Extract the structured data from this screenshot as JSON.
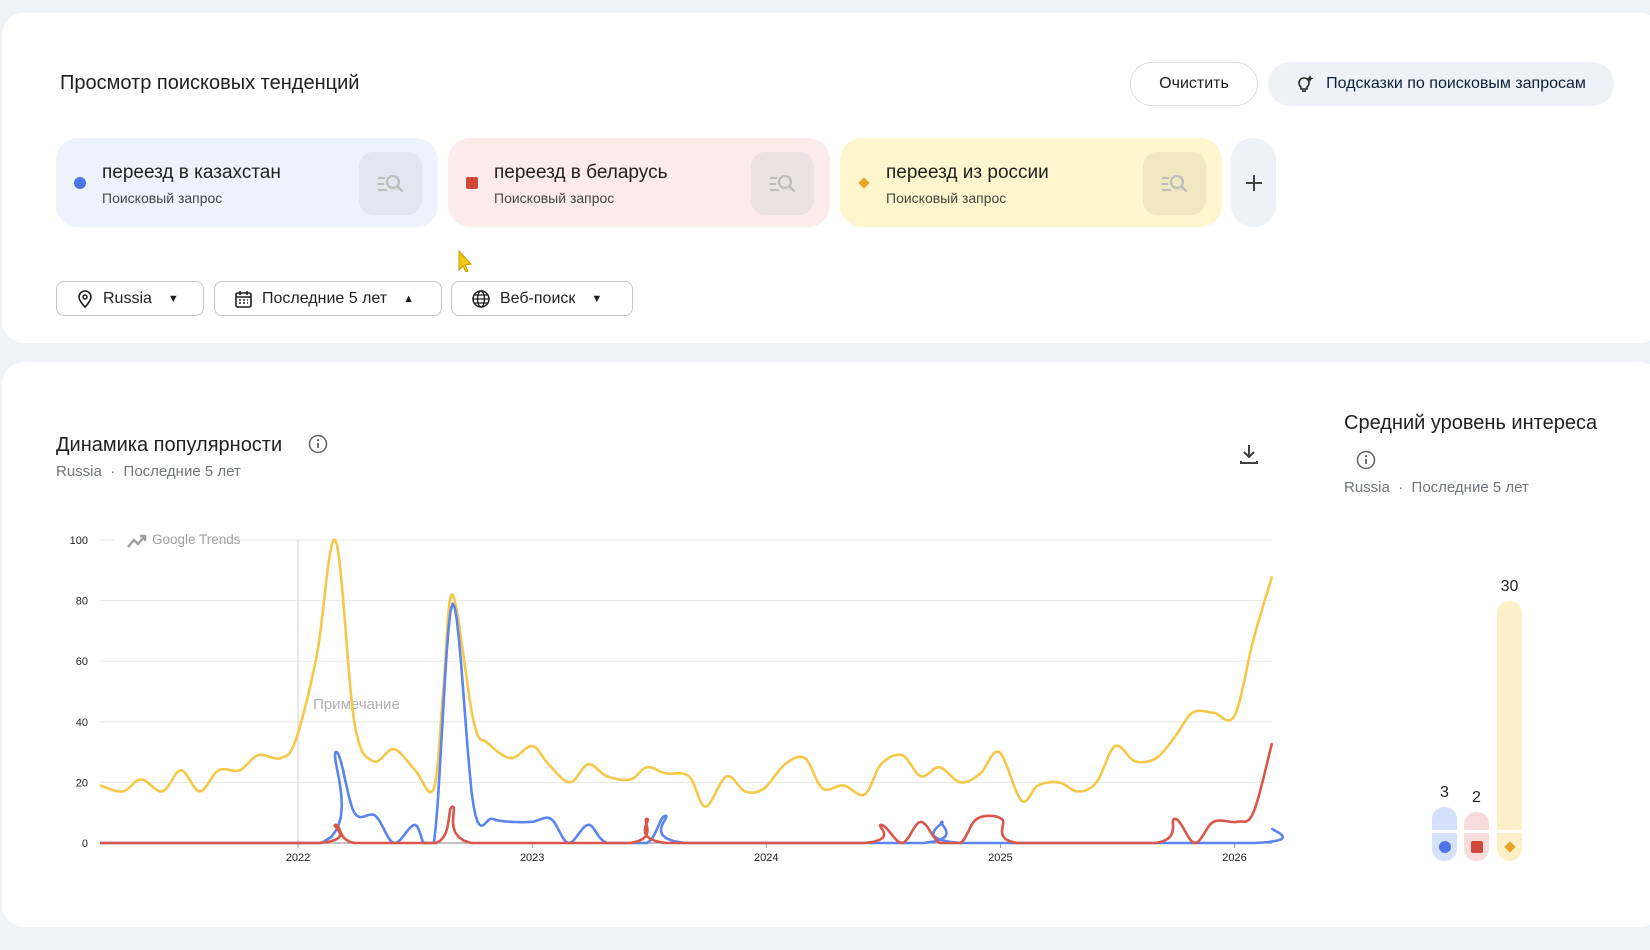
{
  "header": {
    "title": "Просмотр поисковых тенденций",
    "clear_label": "Очистить",
    "suggest_label": "Подсказки по поисковым запросам"
  },
  "terms": [
    {
      "term": "переезд в казахстан",
      "type": "Поисковый запрос",
      "color": "#4a74e8",
      "bg": "#edf2fd",
      "icon_bg": "#e1e6f0",
      "average": 3,
      "marker": "circle"
    },
    {
      "term": "переезд в беларусь",
      "type": "Поисковый запрос",
      "color": "#d3463a",
      "bg": "#fbeceb",
      "icon_bg": "#ede2e3",
      "average": 2,
      "marker": "square"
    },
    {
      "term": "переезд из россии",
      "type": "Поисковый запрос",
      "color": "#e8a427",
      "bg": "#fef7cd",
      "icon_bg": "#f0e8c1",
      "average": 30,
      "marker": "diamond"
    }
  ],
  "filters": {
    "region": "Russia",
    "period": "Последние 5 лет",
    "property": "Веб-поиск"
  },
  "trend": {
    "title": "Динамика популярности",
    "region": "Russia",
    "period": "Последние 5 лет",
    "watermark": "Google Trends",
    "note": "Примечание"
  },
  "average": {
    "title": "Средний уровень интереса",
    "region": "Russia",
    "period": "Последние 5 лет"
  },
  "chart_data": {
    "type": "line",
    "title": "Динамика популярности",
    "xlim": [
      2021.154,
      2026.16
    ],
    "ylim": [
      0,
      100
    ],
    "yticks": [
      "0",
      "20",
      "40",
      "60",
      "80",
      "100"
    ],
    "xticks": [
      {
        "label": "2022",
        "x": 2022
      },
      {
        "label": "2023",
        "x": 2023
      },
      {
        "label": "2024",
        "x": 2024
      },
      {
        "label": "2025",
        "x": 2025
      },
      {
        "label": "2026",
        "x": 2026
      }
    ],
    "grid": true,
    "series": [
      {
        "name": "переезд из россии",
        "color": "#f6c84a",
        "points": [
          [
            2021.154,
            19
          ],
          [
            2021.25,
            17
          ],
          [
            2021.33,
            21
          ],
          [
            2021.42,
            17
          ],
          [
            2021.5,
            24
          ],
          [
            2021.58,
            17
          ],
          [
            2021.66,
            24
          ],
          [
            2021.75,
            24
          ],
          [
            2021.83,
            29
          ],
          [
            2021.925,
            28
          ],
          [
            2021.99,
            34
          ],
          [
            2022.08,
            62
          ],
          [
            2022.16,
            100
          ],
          [
            2022.24,
            40
          ],
          [
            2022.32,
            27
          ],
          [
            2022.41,
            31
          ],
          [
            2022.5,
            24
          ],
          [
            2022.58,
            18
          ],
          [
            2022.62,
            50
          ],
          [
            2022.66,
            82
          ],
          [
            2022.75,
            40
          ],
          [
            2022.81,
            33
          ],
          [
            2022.91,
            28
          ],
          [
            2023.0,
            32
          ],
          [
            2023.07,
            26
          ],
          [
            2023.16,
            20
          ],
          [
            2023.24,
            26
          ],
          [
            2023.32,
            22
          ],
          [
            2023.42,
            21
          ],
          [
            2023.49,
            25
          ],
          [
            2023.57,
            23
          ],
          [
            2023.67,
            22
          ],
          [
            2023.74,
            12
          ],
          [
            2023.83,
            22
          ],
          [
            2023.91,
            17
          ],
          [
            2023.99,
            18
          ],
          [
            2024.08,
            26
          ],
          [
            2024.165,
            28
          ],
          [
            2024.24,
            18
          ],
          [
            2024.33,
            19
          ],
          [
            2024.42,
            16
          ],
          [
            2024.49,
            26
          ],
          [
            2024.58,
            29
          ],
          [
            2024.66,
            22
          ],
          [
            2024.74,
            25
          ],
          [
            2024.83,
            20
          ],
          [
            2024.915,
            23
          ],
          [
            2024.995,
            30
          ],
          [
            2025.09,
            14
          ],
          [
            2025.16,
            19
          ],
          [
            2025.25,
            20
          ],
          [
            2025.33,
            17
          ],
          [
            2025.41,
            20
          ],
          [
            2025.49,
            32
          ],
          [
            2025.575,
            27
          ],
          [
            2025.665,
            28
          ],
          [
            2025.745,
            35
          ],
          [
            2025.82,
            43
          ],
          [
            2025.91,
            43
          ],
          [
            2026.0,
            42
          ],
          [
            2026.08,
            67
          ],
          [
            2026.16,
            88
          ]
        ]
      },
      {
        "name": "переезд в казахстан",
        "color": "#5b84ee",
        "points": [
          [
            2021.154,
            0
          ],
          [
            2022.1,
            0
          ],
          [
            2022.16,
            30
          ],
          [
            2022.24,
            10
          ],
          [
            2022.33,
            9
          ],
          [
            2022.41,
            0
          ],
          [
            2022.5,
            6
          ],
          [
            2022.58,
            0
          ],
          [
            2022.66,
            79
          ],
          [
            2022.75,
            12
          ],
          [
            2022.83,
            8
          ],
          [
            2022.91,
            7
          ],
          [
            2023.0,
            7
          ],
          [
            2023.08,
            8
          ],
          [
            2023.155,
            0
          ],
          [
            2023.24,
            6
          ],
          [
            2023.32,
            0
          ],
          [
            2023.49,
            0
          ],
          [
            2023.57,
            9
          ],
          [
            2023.65,
            0
          ],
          [
            2024.67,
            0
          ],
          [
            2024.75,
            7
          ],
          [
            2024.83,
            0
          ],
          [
            2026.09,
            0
          ],
          [
            2026.16,
            5
          ]
        ]
      },
      {
        "name": "переезд в беларусь",
        "color": "#d9574a",
        "points": [
          [
            2021.154,
            0
          ],
          [
            2022.09,
            0
          ],
          [
            2022.16,
            6
          ],
          [
            2022.24,
            0
          ],
          [
            2022.59,
            0
          ],
          [
            2022.66,
            12
          ],
          [
            2022.74,
            0
          ],
          [
            2023.42,
            0
          ],
          [
            2023.49,
            8
          ],
          [
            2023.57,
            0
          ],
          [
            2024.42,
            0
          ],
          [
            2024.49,
            6
          ],
          [
            2024.58,
            0
          ],
          [
            2024.66,
            7
          ],
          [
            2024.74,
            0
          ],
          [
            2024.83,
            0
          ],
          [
            2024.9,
            8
          ],
          [
            2025.005,
            8
          ],
          [
            2025.07,
            0
          ],
          [
            2025.665,
            0
          ],
          [
            2025.745,
            8
          ],
          [
            2025.83,
            0
          ],
          [
            2025.91,
            7
          ],
          [
            2026.01,
            7
          ],
          [
            2026.08,
            10
          ],
          [
            2026.16,
            33
          ]
        ]
      }
    ]
  }
}
